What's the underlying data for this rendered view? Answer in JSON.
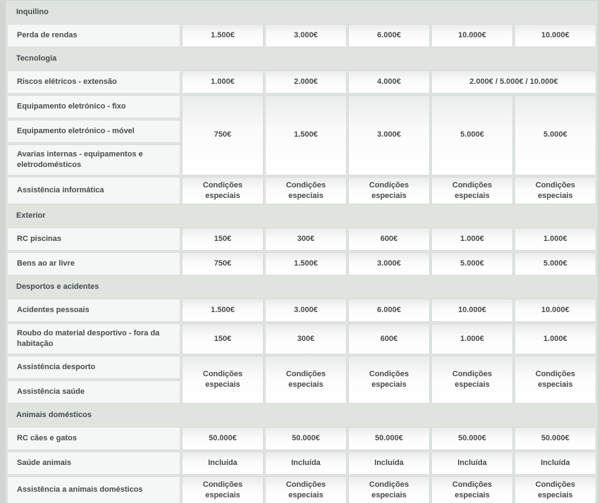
{
  "colors": {
    "page_background": "#d2d6d2",
    "section_band": "#dfe4df",
    "label_cell": "#f5f7f7",
    "value_cell_top": "#eaeceb",
    "value_cell_bottom": "#ffffff",
    "text": "#474b4e",
    "cell_border": "#d8dcd8"
  },
  "table": {
    "column_count": 6,
    "rows": [
      {
        "type": "section",
        "label": "Inquilino"
      },
      {
        "type": "data",
        "label": "Perda de rendas",
        "cells": [
          {
            "text": "1.500€"
          },
          {
            "text": "3.000€"
          },
          {
            "text": "6.000€"
          },
          {
            "text": "10.000€"
          },
          {
            "text": "10.000€"
          }
        ]
      },
      {
        "type": "section",
        "label": "Tecnologia"
      },
      {
        "type": "data",
        "label": "Riscos elétricos - extensão",
        "cells": [
          {
            "text": "1.000€"
          },
          {
            "text": "2.000€"
          },
          {
            "text": "4.000€"
          },
          {
            "text": "2.000€ / 5.000€ / 10.000€",
            "colspan": 2
          }
        ]
      },
      {
        "type": "data",
        "label": "Equipamento eletrónico - fixo",
        "cells": [
          {
            "text": "750€",
            "rowspan": 3
          },
          {
            "text": "1.500€",
            "rowspan": 3
          },
          {
            "text": "3.000€",
            "rowspan": 3
          },
          {
            "text": "5.000€",
            "rowspan": 3
          },
          {
            "text": "5.000€",
            "rowspan": 3
          }
        ]
      },
      {
        "type": "data",
        "label": "Equipamento eletrónico - móvel",
        "cells": []
      },
      {
        "type": "data",
        "label": "Avarias internas - equipamentos e eletrodomésticos",
        "cells": []
      },
      {
        "type": "data",
        "label": "Assistência informática",
        "cells": [
          {
            "text": "Condições especiais"
          },
          {
            "text": "Condições especiais"
          },
          {
            "text": "Condições especiais"
          },
          {
            "text": "Condições especiais"
          },
          {
            "text": "Condições especiais"
          }
        ]
      },
      {
        "type": "section",
        "label": "Exterior"
      },
      {
        "type": "data",
        "label": "RC piscinas",
        "cells": [
          {
            "text": "150€"
          },
          {
            "text": "300€"
          },
          {
            "text": "600€"
          },
          {
            "text": "1.000€"
          },
          {
            "text": "1.000€"
          }
        ]
      },
      {
        "type": "data",
        "label": "Bens ao ar livre",
        "cells": [
          {
            "text": "750€"
          },
          {
            "text": "1.500€"
          },
          {
            "text": "3.000€"
          },
          {
            "text": "5.000€"
          },
          {
            "text": "5.000€"
          }
        ]
      },
      {
        "type": "section",
        "label": "Desportos e acidentes"
      },
      {
        "type": "data",
        "label": "Acidentes pessoais",
        "cells": [
          {
            "text": "1.500€"
          },
          {
            "text": "3.000€"
          },
          {
            "text": "6.000€"
          },
          {
            "text": "10.000€"
          },
          {
            "text": "10.000€"
          }
        ]
      },
      {
        "type": "data",
        "label": "Roubo do material desportivo - fora da habitação",
        "cells": [
          {
            "text": "150€"
          },
          {
            "text": "300€"
          },
          {
            "text": "600€"
          },
          {
            "text": "1.000€"
          },
          {
            "text": "1.000€"
          }
        ]
      },
      {
        "type": "data",
        "label": "Assistência desporto",
        "cells": [
          {
            "text": "Condições especiais",
            "rowspan": 2
          },
          {
            "text": "Condições especiais",
            "rowspan": 2
          },
          {
            "text": "Condições especiais",
            "rowspan": 2
          },
          {
            "text": "Condições especiais",
            "rowspan": 2
          },
          {
            "text": "Condições especiais",
            "rowspan": 2
          }
        ]
      },
      {
        "type": "data",
        "label": "Assistência saúde",
        "cells": []
      },
      {
        "type": "section",
        "label": "Animais domésticos"
      },
      {
        "type": "data",
        "label": "RC cães e gatos",
        "cells": [
          {
            "text": "50.000€"
          },
          {
            "text": "50.000€"
          },
          {
            "text": "50.000€"
          },
          {
            "text": "50.000€"
          },
          {
            "text": "50.000€"
          }
        ]
      },
      {
        "type": "data",
        "label": "Saúde animais",
        "cells": [
          {
            "text": "Incluída"
          },
          {
            "text": "Incluída"
          },
          {
            "text": "Incluída"
          },
          {
            "text": "Incluída"
          },
          {
            "text": "Incluída"
          }
        ]
      },
      {
        "type": "data",
        "label": "Assistência a animais domésticos",
        "cells": [
          {
            "text": "Condições especiais"
          },
          {
            "text": "Condições especiais"
          },
          {
            "text": "Condições especiais"
          },
          {
            "text": "Condições especiais"
          },
          {
            "text": "Condições especiais"
          }
        ]
      }
    ]
  }
}
